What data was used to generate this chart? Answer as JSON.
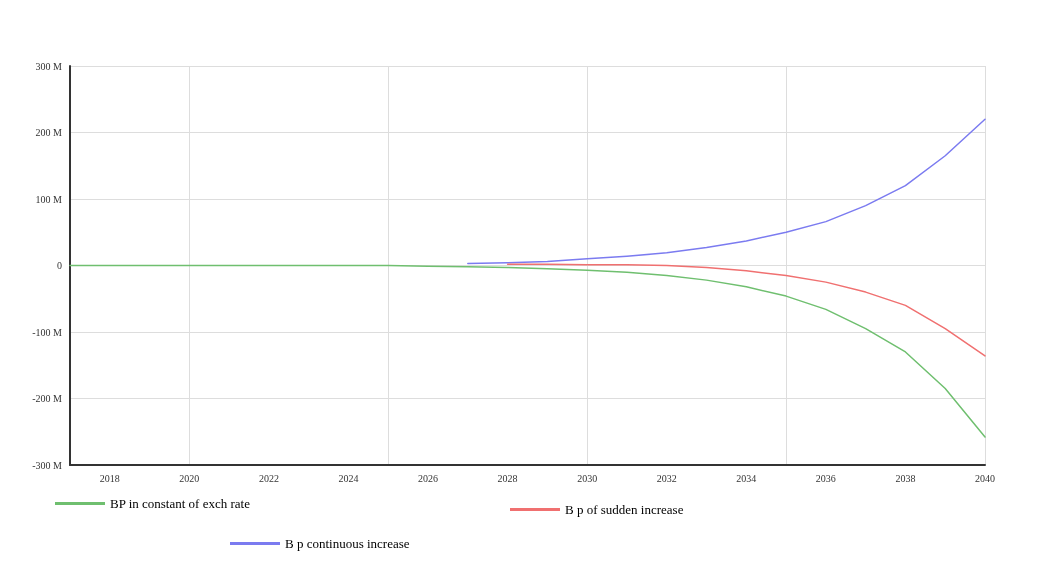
{
  "chart_data": {
    "type": "line",
    "x": [
      2017,
      2018,
      2019,
      2020,
      2021,
      2022,
      2023,
      2024,
      2025,
      2026,
      2027,
      2028,
      2029,
      2030,
      2031,
      2032,
      2033,
      2034,
      2035,
      2036,
      2037,
      2038,
      2039,
      2040
    ],
    "series": [
      {
        "name": "BP in constant of exch rate",
        "color": "#6fbf6f",
        "values": [
          0,
          0,
          0,
          0,
          0,
          0,
          0,
          0,
          0,
          -1,
          -2,
          -3,
          -5,
          -7,
          -10,
          -15,
          -22,
          -32,
          -46,
          -66,
          -95,
          -130,
          -185,
          -258
        ]
      },
      {
        "name": "B p of sudden increase",
        "color": "#f07070",
        "values": [
          null,
          null,
          null,
          null,
          null,
          null,
          null,
          null,
          null,
          null,
          null,
          2,
          2,
          1,
          1,
          0,
          -3,
          -8,
          -15,
          -25,
          -40,
          -60,
          -95,
          -136
        ]
      },
      {
        "name": "B p continuous increase",
        "color": "#7b7bf0",
        "values": [
          null,
          null,
          null,
          null,
          null,
          null,
          null,
          null,
          null,
          null,
          3,
          4,
          6,
          10,
          14,
          19,
          27,
          37,
          50,
          66,
          90,
          120,
          165,
          220
        ]
      }
    ],
    "xlim": [
      2017,
      2040
    ],
    "xticks": [
      2018,
      2020,
      2022,
      2024,
      2026,
      2028,
      2030,
      2032,
      2034,
      2036,
      2038,
      2040
    ],
    "ylim": [
      -300,
      300
    ],
    "yticks": [
      {
        "value": -300,
        "label": "-300 M"
      },
      {
        "value": -200,
        "label": "-200 M"
      },
      {
        "value": -100,
        "label": "-100 M"
      },
      0,
      {
        "value": 100,
        "label": "100 M"
      },
      {
        "value": 200,
        "label": "200 M"
      },
      {
        "value": 300,
        "label": "300 M"
      }
    ],
    "grid": true,
    "legend": "bottom",
    "marker": "none",
    "line_style": "solid"
  }
}
